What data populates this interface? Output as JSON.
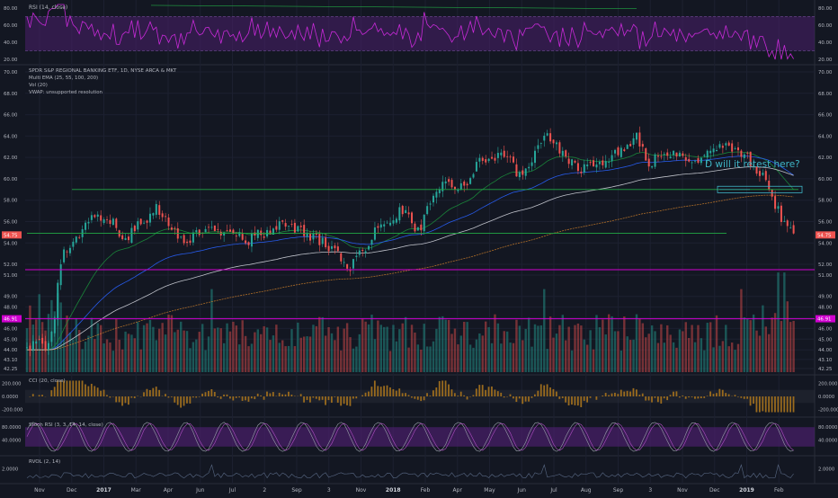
{
  "colors": {
    "background": "#131722",
    "bull": "#26a69a",
    "bear": "#ef5350",
    "rsi_line": "#c82ad8",
    "band_fill": "#4a1f6b",
    "ema_green": "#1b8f3c",
    "ema_blue": "#2962ff",
    "ema_white": "#d1d4dc",
    "ema_orange": "#d7852a",
    "level_green": "#22a845",
    "level_magenta": "#d000d0",
    "annotation": "#3fb6c6",
    "cci_fill": "#9a6b1e",
    "stoch_k": "#9aa0aa",
    "stoch_d": "#b04dc4",
    "rvol_line": "#5a6a86"
  },
  "annotation": {
    "text": "D will it retest here?"
  },
  "chart_data": [
    {
      "name": "price",
      "type": "candlestick",
      "title": "SPDR S&P REGIONAL BANKING ETF, 1D, NYSE ARCA & MKT",
      "studies": [
        "Multi EMA (25, 55, 100, 200)",
        "Vol (20)",
        "VWAP: unsupported resolution"
      ],
      "xaxis_labels": [
        "Nov",
        "Dec",
        "2017",
        "Mar",
        "Apr",
        "Jun",
        "Jul",
        "2",
        "Sep",
        "3",
        "Nov",
        "2018",
        "Feb",
        "Apr",
        "May",
        "Jun",
        "Jul",
        "Aug",
        "Sep",
        "3",
        "Nov",
        "Dec",
        "2019",
        "Feb"
      ],
      "yaxis_ticks": [
        70.0,
        68.0,
        66.0,
        64.0,
        62.0,
        60.0,
        58.0,
        56.0,
        54.0,
        52.0,
        51.0,
        49.0,
        48.0,
        47.0,
        46.0,
        45.0,
        44.0,
        43.1,
        42.25
      ],
      "ylim": [
        42.25,
        70.0
      ],
      "last_price_label": "54.75",
      "level_label": "46.91",
      "horizontal_levels": [
        {
          "value": 59.0,
          "color": "green"
        },
        {
          "value": 54.9,
          "color": "green"
        },
        {
          "value": 51.5,
          "color": "magenta"
        },
        {
          "value": 46.91,
          "color": "magenta"
        }
      ],
      "volume_ylim_pct": 0.28
    },
    {
      "name": "rsi",
      "type": "line",
      "title": "RSI (14, close)",
      "yaxis_ticks": [
        80.0,
        60.0,
        40.0,
        20.0
      ],
      "ylim": [
        18,
        85
      ],
      "band": [
        30,
        70
      ]
    },
    {
      "name": "cci",
      "type": "histogram",
      "title": "CCI (20, close)",
      "yaxis_ticks": [
        "200.000",
        "0.0000",
        "-200.000"
      ],
      "ylim": [
        -260,
        260
      ]
    },
    {
      "name": "stoch_rsi",
      "type": "line",
      "title": "Stoch RSI (3, 3, 14, 14, close)",
      "yaxis_ticks": [
        "80.0000",
        "40.0000"
      ],
      "ylim": [
        0,
        100
      ],
      "band": [
        20,
        80
      ]
    },
    {
      "name": "rvol",
      "type": "line",
      "title": "RVOL (2, 14)",
      "yaxis_ticks": [
        "2.0000"
      ],
      "ylim": [
        0,
        3.5
      ]
    }
  ]
}
